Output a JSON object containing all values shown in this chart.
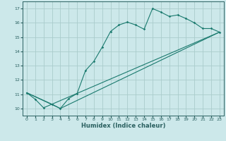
{
  "xlabel": "Humidex (Indice chaleur)",
  "ylabel": "",
  "bg_color": "#cce8ea",
  "grid_color": "#aacccc",
  "line_color": "#1a7a6e",
  "axis_color": "#2a6060",
  "xlim": [
    -0.5,
    23.5
  ],
  "ylim": [
    9.5,
    17.5
  ],
  "xticks": [
    0,
    1,
    2,
    3,
    4,
    5,
    6,
    7,
    8,
    9,
    10,
    11,
    12,
    13,
    14,
    15,
    16,
    17,
    18,
    19,
    20,
    21,
    22,
    23
  ],
  "yticks": [
    10,
    11,
    12,
    13,
    14,
    15,
    16,
    17
  ],
  "series": [
    [
      0,
      11.1
    ],
    [
      1,
      10.65
    ],
    [
      2,
      10.05
    ],
    [
      3,
      10.3
    ],
    [
      4,
      10.0
    ],
    [
      5,
      10.7
    ],
    [
      6,
      11.05
    ],
    [
      7,
      12.65
    ],
    [
      8,
      13.3
    ],
    [
      9,
      14.3
    ],
    [
      10,
      15.4
    ],
    [
      11,
      15.85
    ],
    [
      12,
      16.05
    ],
    [
      13,
      15.85
    ],
    [
      14,
      15.55
    ],
    [
      15,
      17.0
    ],
    [
      16,
      16.75
    ],
    [
      17,
      16.45
    ],
    [
      18,
      16.55
    ],
    [
      19,
      16.3
    ],
    [
      20,
      16.0
    ],
    [
      21,
      15.6
    ],
    [
      22,
      15.6
    ],
    [
      23,
      15.35
    ]
  ],
  "series2": [
    [
      0,
      11.1
    ],
    [
      4,
      10.0
    ],
    [
      23,
      15.35
    ]
  ],
  "series3": [
    [
      0,
      11.1
    ],
    [
      3,
      10.3
    ],
    [
      23,
      15.35
    ]
  ]
}
